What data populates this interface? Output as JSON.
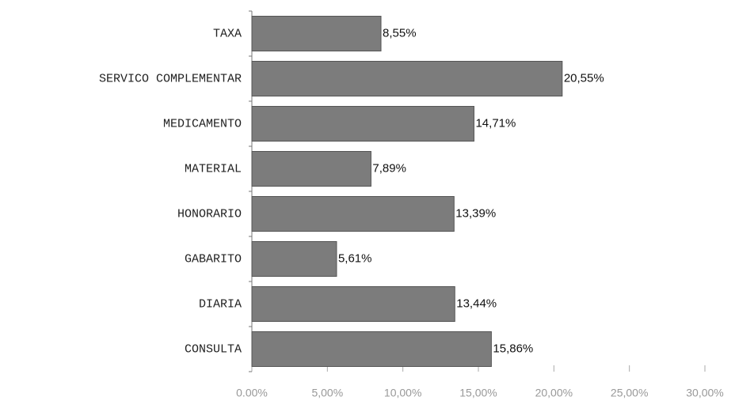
{
  "chart_data": {
    "type": "hbar",
    "categories": [
      "TAXA",
      "SERVICO COMPLEMENTAR",
      "MEDICAMENTO",
      "MATERIAL",
      "HONORARIO",
      "GABARITO",
      "DIARIA",
      "CONSULTA"
    ],
    "values": [
      8.55,
      20.55,
      14.71,
      7.89,
      13.39,
      5.61,
      13.44,
      15.86
    ],
    "value_labels": [
      "8,55%",
      "20,55%",
      "14,71%",
      "7,89%",
      "13,39%",
      "5,61%",
      "13,44%",
      "15,86%"
    ],
    "color": "#7c7c7c",
    "xlim": [
      0,
      30
    ],
    "xticks": [
      {
        "value": 0,
        "label": "0.00%"
      },
      {
        "value": 5,
        "label": "5,00%"
      },
      {
        "value": 10,
        "label": "10,00%"
      },
      {
        "value": 15,
        "label": "15,00%"
      },
      {
        "value": 20,
        "label": "20,00%"
      },
      {
        "value": 25,
        "label": "25,00%"
      },
      {
        "value": 30,
        "label": "30,00%"
      }
    ]
  }
}
